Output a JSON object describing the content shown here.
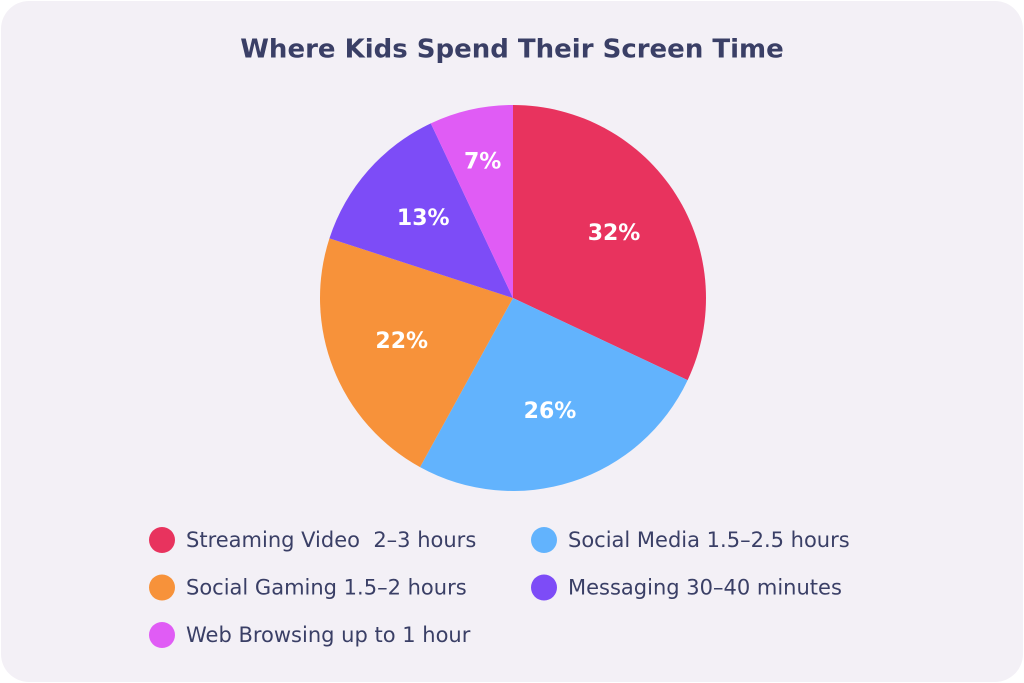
{
  "chart_data": {
    "type": "pie",
    "title": "Where Kids Spend Their Screen Time",
    "categories": [
      "Streaming Video  2–3 hours",
      "Social Media 1.5–2.5 hours",
      "Social Gaming 1.5–2 hours",
      "Messaging 30–40 minutes",
      "Web Browsing up to 1 hour"
    ],
    "values": [
      32,
      26,
      22,
      13,
      7
    ],
    "value_labels": [
      "32%",
      "26%",
      "22%",
      "13%",
      "7%"
    ],
    "colors": [
      "#e8335e",
      "#62b3fd",
      "#f7923a",
      "#7d4cf7",
      "#e05cf5"
    ]
  }
}
